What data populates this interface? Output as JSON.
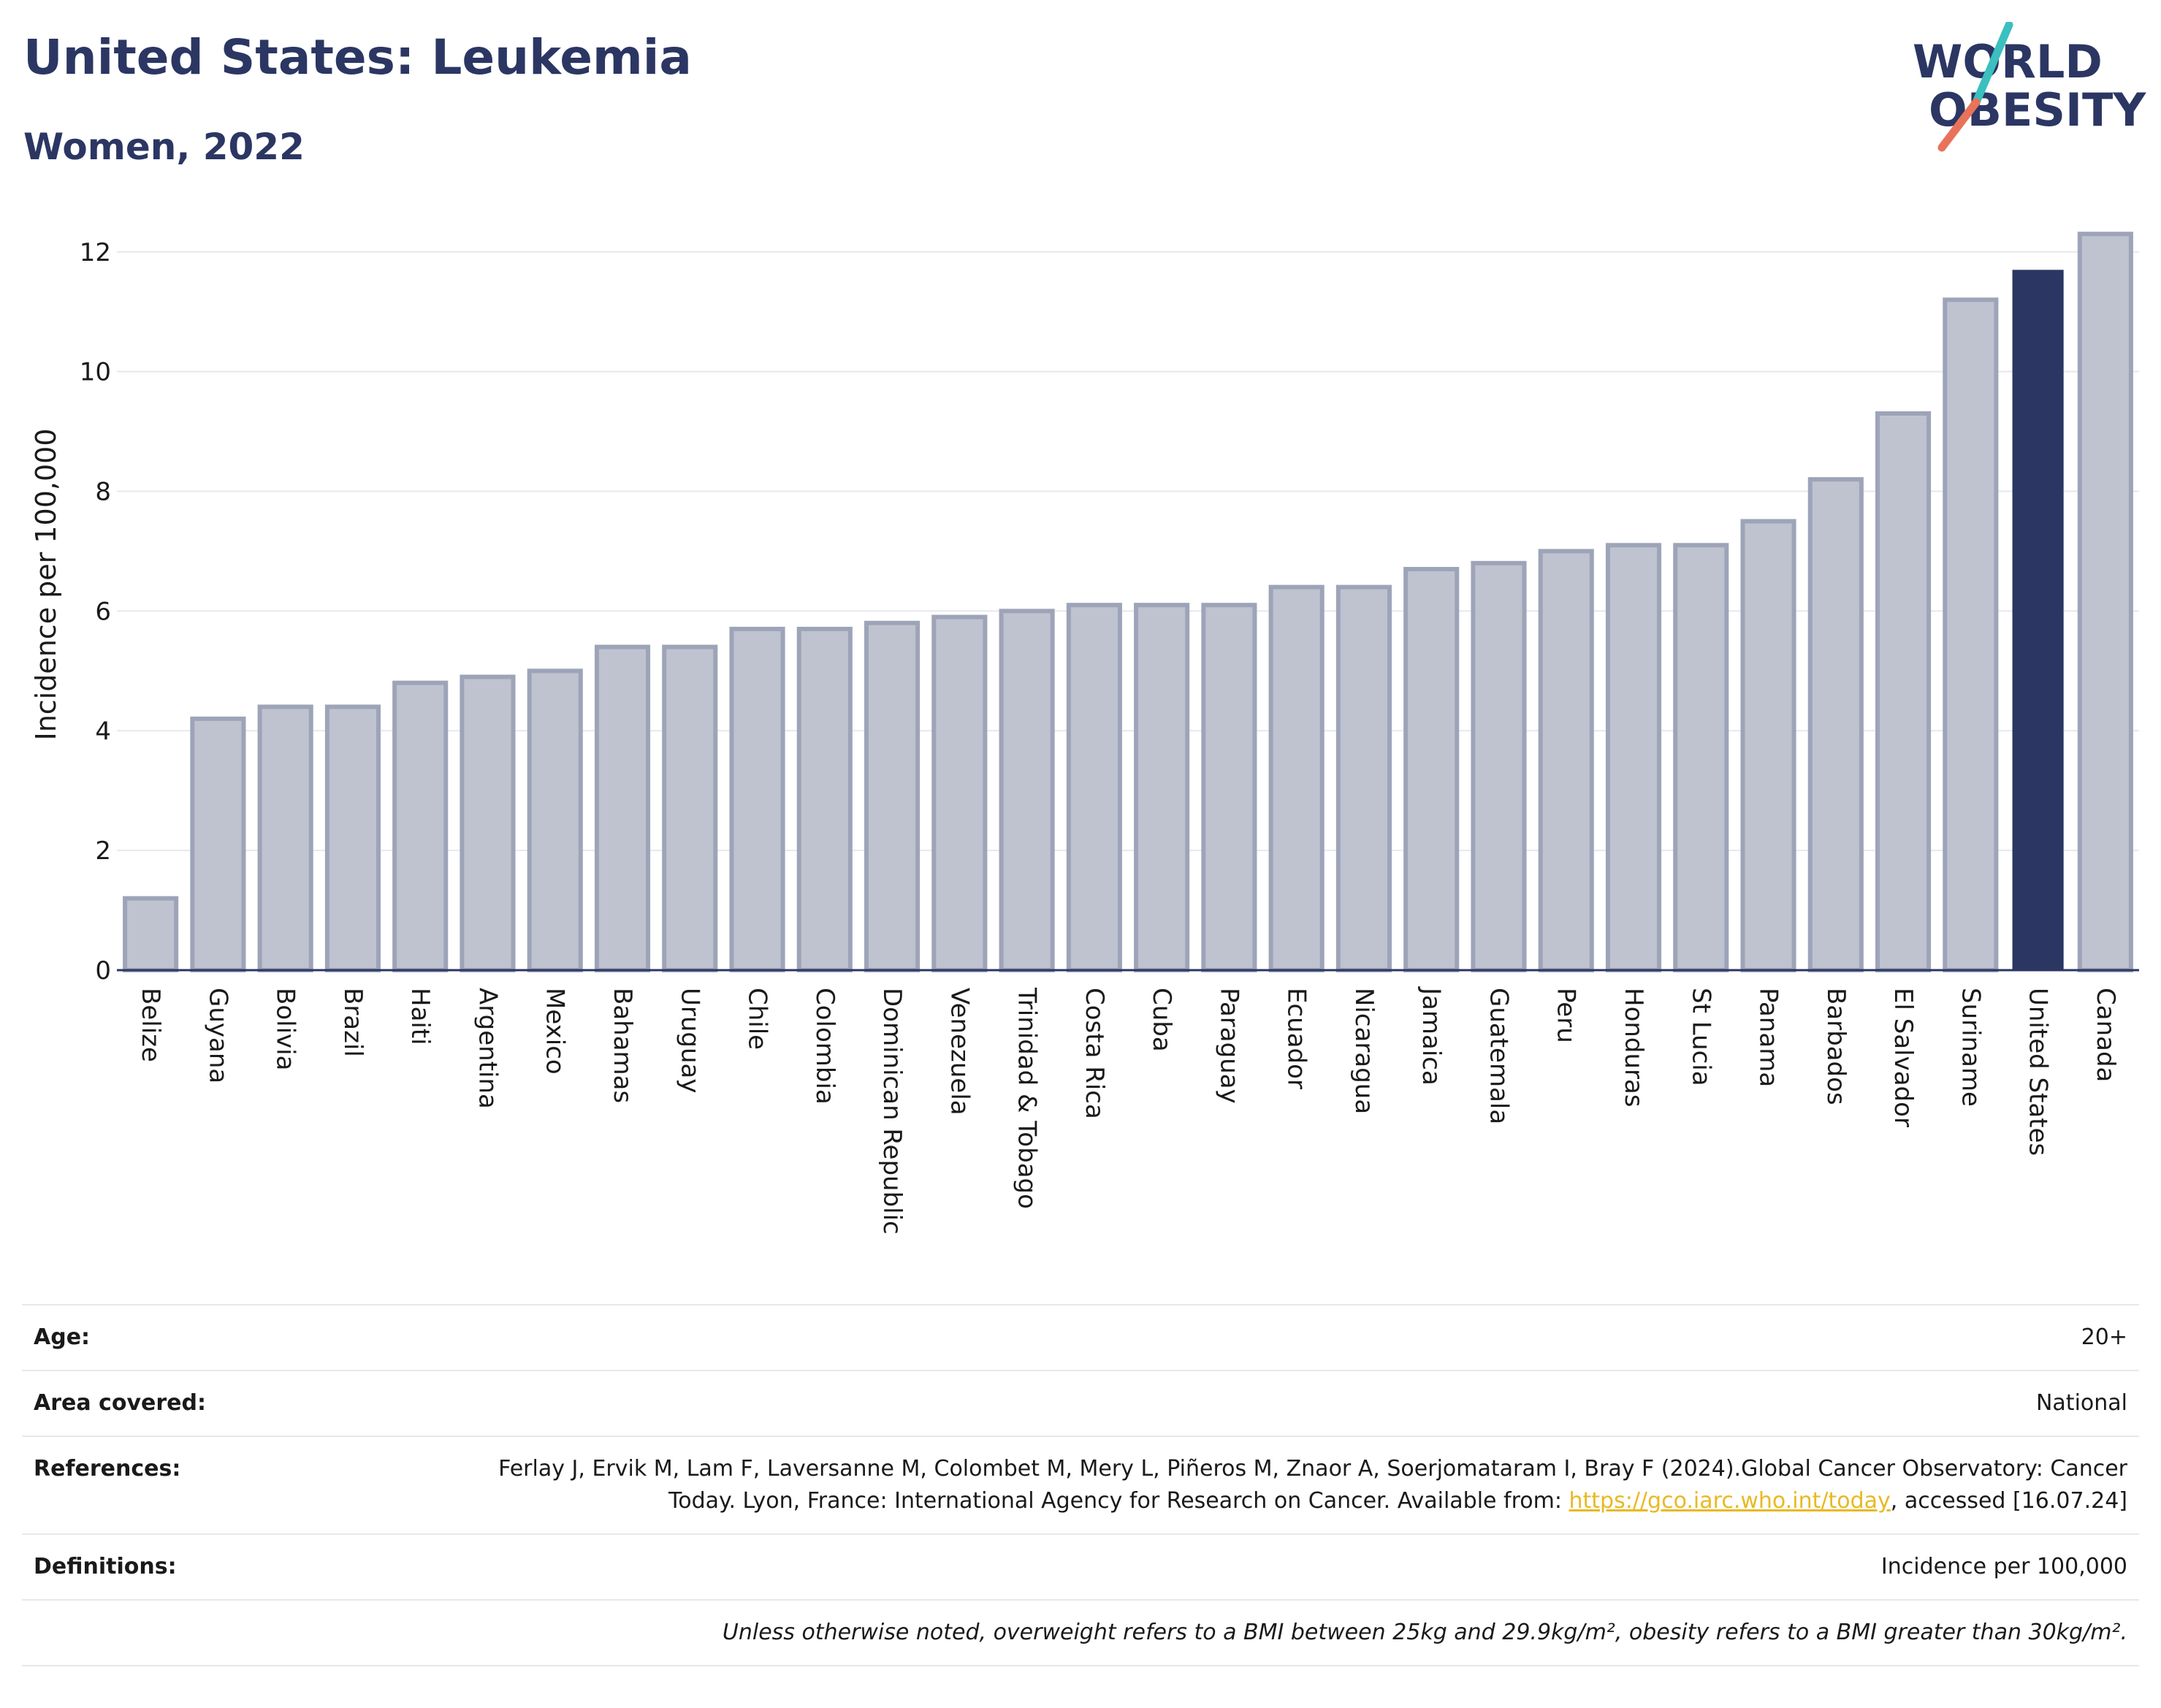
{
  "title": "United States: Leukemia",
  "subtitle": "Women, 2022",
  "logo": {
    "line1": "WORLD",
    "line2": "OBESITY",
    "text_color": "#2b3663",
    "slash_teal": "#3bbfbf",
    "slash_coral": "#e8735a"
  },
  "colors": {
    "highlight": "#2b3663",
    "bar_fill": "#bfc3d0",
    "bar_stroke": "#9ea4b8",
    "grid": "#e6e8ee",
    "axis": "#2b3663"
  },
  "chart_data": {
    "type": "bar",
    "ylabel": "Incidence per 100,000",
    "xlabel": "",
    "ylim": [
      0,
      12.4
    ],
    "yticks": [
      0,
      2,
      4,
      6,
      8,
      10,
      12
    ],
    "grid": true,
    "highlight": "United States",
    "categories": [
      "Belize",
      "Guyana",
      "Bolivia",
      "Brazil",
      "Haiti",
      "Argentina",
      "Mexico",
      "Bahamas",
      "Uruguay",
      "Chile",
      "Colombia",
      "Dominican Republic",
      "Venezuela",
      "Trinidad & Tobago",
      "Costa Rica",
      "Cuba",
      "Paraguay",
      "Ecuador",
      "Nicaragua",
      "Jamaica",
      "Guatemala",
      "Peru",
      "Honduras",
      "St Lucia",
      "Panama",
      "Barbados",
      "El Salvador",
      "Suriname",
      "United States",
      "Canada"
    ],
    "values": [
      1.2,
      4.2,
      4.4,
      4.4,
      4.8,
      4.9,
      5.0,
      5.4,
      5.4,
      5.7,
      5.7,
      5.8,
      5.9,
      6.0,
      6.1,
      6.1,
      6.1,
      6.4,
      6.4,
      6.7,
      6.8,
      7.0,
      7.1,
      7.1,
      7.5,
      8.2,
      9.3,
      11.2,
      11.7,
      12.3
    ]
  },
  "info": {
    "age_label": "Age:",
    "age_value": "20+",
    "area_label": "Area covered:",
    "area_value": "National",
    "references_label": "References:",
    "references_text_1": "Ferlay J, Ervik M, Lam F, Laversanne M, Colombet M, Mery L, Piñeros M, Znaor A, Soerjomataram I, Bray F (2024).Global Cancer Observatory: Cancer Today. Lyon, France: International Agency for Research on Cancer. Available from: ",
    "references_link": "https://gco.iarc.who.int/today",
    "references_text_2": ", accessed [16.07.24]",
    "definitions_label": "Definitions:",
    "definitions_value": "Incidence per 100,000",
    "note": "Unless otherwise noted, overweight refers to a BMI between 25kg and 29.9kg/m², obesity refers to a BMI greater than 30kg/m²."
  }
}
